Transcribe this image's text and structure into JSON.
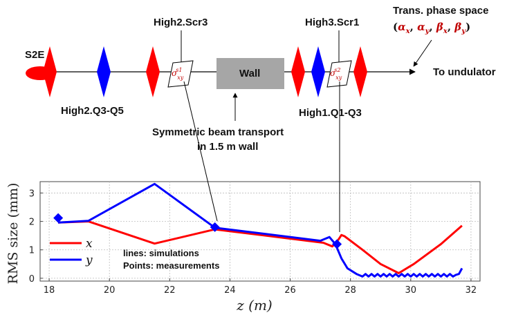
{
  "beamline": {
    "source_label": "S2E",
    "screen1_label": "High2.Scr3",
    "screen2_label": "High3.Scr1",
    "quads_left_label": "High2.Q3-Q5",
    "quads_right_label": "High1.Q1-Q3",
    "wall_label": "Wall",
    "wall_note_line1": "Symmetric beam transport",
    "wall_note_line2": "in 1.5 m wall",
    "phase_space_line1": "Trans. phase space",
    "phase_space_params": "(αx, αy, βx, βy)",
    "undulator_label": "To undulator",
    "sigma1": "σxys1",
    "sigma2": "σxys2",
    "colors": {
      "x": "#ff0000",
      "y": "#0000ff",
      "wall": "#a6a6a6",
      "accent": "#c00000"
    }
  },
  "chart_data": {
    "type": "line",
    "xlabel": "z (m)",
    "ylabel": "RMS size (mm)",
    "xlim": [
      17.7,
      32.3
    ],
    "ylim": [
      -0.1,
      3.4
    ],
    "xticks": [
      18,
      20,
      22,
      24,
      26,
      28,
      30,
      32
    ],
    "yticks": [
      0,
      1,
      2,
      3
    ],
    "grid": true,
    "legend_position": "left",
    "series": [
      {
        "name": "x",
        "color": "#ff0000",
        "x": [
          18.3,
          19.3,
          21.5,
          23.5,
          27.1,
          27.4,
          27.6,
          27.7,
          27.8,
          28.4,
          29.0,
          29.6,
          30.1,
          31.0,
          31.7
        ],
        "y": [
          1.96,
          2.0,
          1.22,
          1.72,
          1.25,
          1.12,
          1.36,
          1.52,
          1.48,
          1.0,
          0.5,
          0.18,
          0.5,
          1.2,
          1.85
        ]
      },
      {
        "name": "y",
        "color": "#0000ff",
        "x": [
          18.3,
          19.3,
          21.5,
          23.5,
          27.0,
          27.3,
          27.5,
          27.7,
          27.9,
          28.2,
          28.4,
          28.5,
          28.6,
          28.7,
          28.8,
          28.9,
          29.0,
          29.1,
          29.2,
          29.3,
          29.4,
          29.5,
          29.6,
          29.7,
          29.8,
          29.9,
          30.0,
          30.1,
          30.2,
          30.3,
          30.4,
          30.5,
          30.6,
          30.7,
          30.8,
          30.9,
          31.0,
          31.1,
          31.2,
          31.3,
          31.4,
          31.5,
          31.6,
          31.7
        ],
        "y": [
          1.96,
          2.02,
          3.32,
          1.78,
          1.32,
          1.45,
          1.2,
          0.7,
          0.35,
          0.15,
          0.06,
          0.15,
          0.06,
          0.15,
          0.06,
          0.15,
          0.06,
          0.15,
          0.06,
          0.15,
          0.06,
          0.15,
          0.06,
          0.15,
          0.06,
          0.15,
          0.06,
          0.15,
          0.06,
          0.15,
          0.06,
          0.15,
          0.06,
          0.15,
          0.06,
          0.15,
          0.06,
          0.15,
          0.06,
          0.15,
          0.06,
          0.12,
          0.15,
          0.35
        ]
      }
    ],
    "measurements": [
      {
        "x": 18.3,
        "y": 2.12
      },
      {
        "x": 23.5,
        "y": 1.8
      },
      {
        "x": 27.55,
        "y": 1.2
      }
    ],
    "annotation_line1": "lines: simulations",
    "annotation_line2": "Points: measurements"
  }
}
